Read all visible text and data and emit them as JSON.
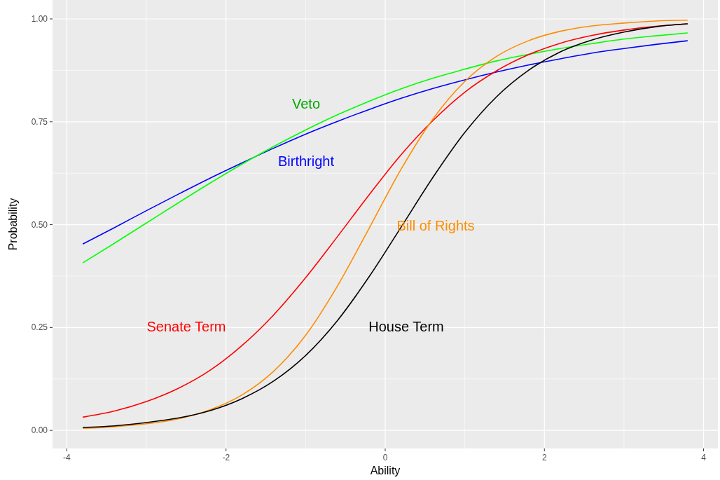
{
  "chart_data": {
    "type": "line",
    "xlabel": "Ability",
    "ylabel": "Probability",
    "x": [
      -3.8,
      -3.4,
      -3.0,
      -2.6,
      -2.2,
      -1.8,
      -1.4,
      -1.0,
      -0.6,
      -0.2,
      0.2,
      0.6,
      1.0,
      1.4,
      1.8,
      2.2,
      2.6,
      3.0,
      3.4,
      3.8
    ],
    "series": [
      {
        "name": "Birthright",
        "color": "#0000ff",
        "values": [
          0.453,
          0.493,
          0.534,
          0.574,
          0.613,
          0.65,
          0.686,
          0.72,
          0.751,
          0.78,
          0.807,
          0.831,
          0.852,
          0.871,
          0.888,
          0.903,
          0.917,
          0.928,
          0.938,
          0.947
        ]
      },
      {
        "name": "Veto",
        "color": "#00ff00",
        "values": [
          0.407,
          0.455,
          0.504,
          0.553,
          0.601,
          0.647,
          0.69,
          0.73,
          0.767,
          0.8,
          0.83,
          0.856,
          0.878,
          0.898,
          0.914,
          0.928,
          0.94,
          0.951,
          0.959,
          0.966
        ]
      },
      {
        "name": "Senate Term",
        "color": "#ff0000",
        "values": [
          0.032,
          0.047,
          0.07,
          0.102,
          0.146,
          0.206,
          0.281,
          0.371,
          0.471,
          0.573,
          0.67,
          0.753,
          0.822,
          0.874,
          0.913,
          0.941,
          0.96,
          0.973,
          0.982,
          0.988
        ]
      },
      {
        "name": "Bill of Rights",
        "color": "#ff8c00",
        "values": [
          0.005,
          0.009,
          0.016,
          0.028,
          0.05,
          0.086,
          0.144,
          0.231,
          0.351,
          0.492,
          0.635,
          0.757,
          0.848,
          0.909,
          0.947,
          0.97,
          0.983,
          0.99,
          0.995,
          0.997
        ]
      },
      {
        "name": "House Term",
        "color": "#000000",
        "values": [
          0.007,
          0.011,
          0.019,
          0.03,
          0.048,
          0.077,
          0.12,
          0.182,
          0.267,
          0.374,
          0.494,
          0.615,
          0.724,
          0.811,
          0.875,
          0.92,
          0.949,
          0.968,
          0.981,
          0.988
        ]
      }
    ],
    "xlim": [
      -4.18,
      4.18
    ],
    "ylim": [
      -0.044,
      1.046
    ],
    "xticks": [
      -4,
      -2,
      0,
      2,
      4
    ],
    "yticks": [
      {
        "value": 0,
        "label": "0.00"
      },
      {
        "value": 0.25,
        "label": "0.25"
      },
      {
        "value": 0.5,
        "label": "0.50"
      },
      {
        "value": 0.75,
        "label": "0.75"
      },
      {
        "value": 1,
        "label": "1.00"
      }
    ],
    "grid": true,
    "line_style": "solid",
    "marker": "none"
  }
}
